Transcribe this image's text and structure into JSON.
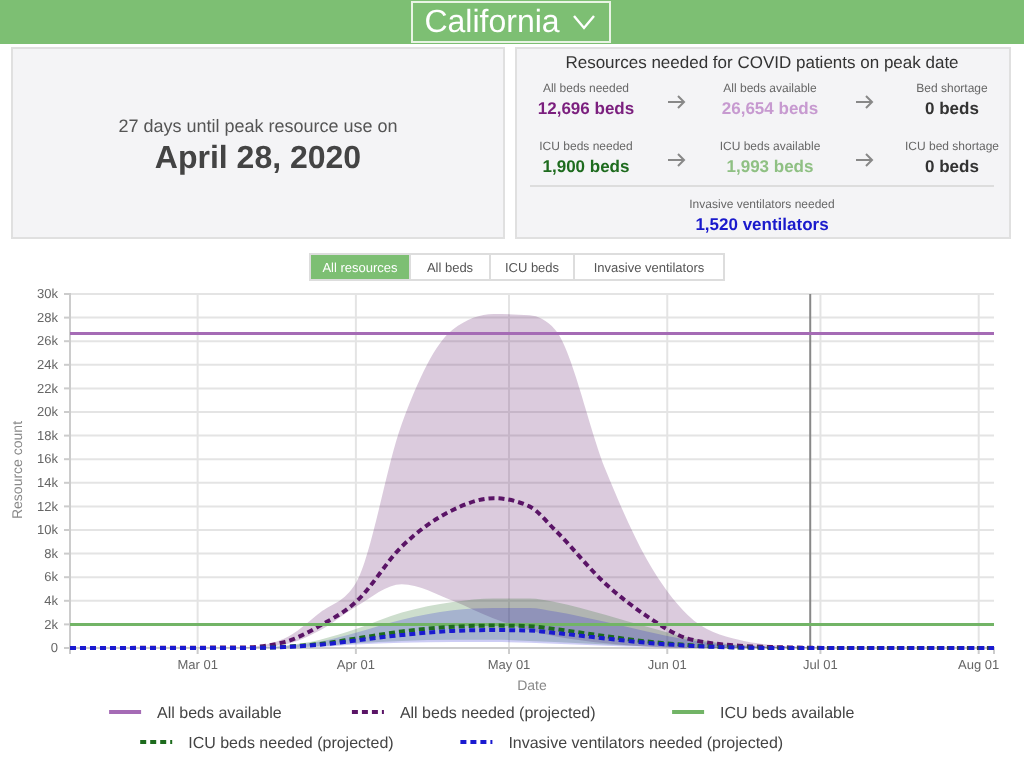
{
  "chart_data": {
    "type": "line",
    "title": "California",
    "xlabel": "Date",
    "ylabel": "Resource count",
    "annotations": [
      "27 days until peak resource use on",
      "April 28, 2020",
      "Resources needed for COVID patients on peak date",
      "All beds needed",
      "12,696 beds",
      "All beds available",
      "26,654 beds",
      "Bed shortage",
      "0 beds",
      "ICU beds needed",
      "1,900 beds",
      "ICU beds available",
      "1,993 beds",
      "ICU bed shortage",
      "0 beds",
      "Invasive ventilators needed",
      "1,520 ventilators",
      "All resources",
      "All beds",
      "ICU beds",
      "Invasive ventilators"
    ],
    "xlim": [
      "2020-02-05",
      "2020-08-04"
    ],
    "xticks": [
      {
        "value": "2020-03-01",
        "label": "Mar 01"
      },
      {
        "value": "2020-04-01",
        "label": "Apr 01"
      },
      {
        "value": "2020-05-01",
        "label": "May 01"
      },
      {
        "value": "2020-06-01",
        "label": "Jun 01"
      },
      {
        "value": "2020-07-01",
        "label": "Jul 01"
      },
      {
        "value": "2020-08-01",
        "label": "Aug 01"
      }
    ],
    "ylim": [
      0,
      30000
    ],
    "yticks": [
      0,
      {
        "value": 2000,
        "label": "2k"
      },
      {
        "value": 4000,
        "label": "4k"
      },
      {
        "value": 6000,
        "label": "6k"
      },
      {
        "value": 8000,
        "label": "8k"
      },
      {
        "value": 10000,
        "label": "10k"
      },
      {
        "value": 12000,
        "label": "12k"
      },
      {
        "value": 14000,
        "label": "14k"
      },
      {
        "value": 16000,
        "label": "16k"
      },
      {
        "value": 18000,
        "label": "18k"
      },
      {
        "value": 20000,
        "label": "20k"
      },
      {
        "value": 22000,
        "label": "22k"
      },
      {
        "value": 24000,
        "label": "24k"
      },
      {
        "value": 26000,
        "label": "26k"
      },
      {
        "value": 28000,
        "label": "28k"
      },
      {
        "value": 30000,
        "label": "30k"
      }
    ],
    "grid": true,
    "legend": "bottom",
    "ref_lines": [
      {
        "axis": "x",
        "value": "2020-06-29",
        "color": "#888888"
      }
    ],
    "series": [
      {
        "name": "All beds available",
        "color": "#a56bb5",
        "line_style": "solid",
        "x": [
          "2020-02-05",
          "2020-08-04"
        ],
        "values": [
          26654,
          26654
        ]
      },
      {
        "name": "All beds needed (projected)",
        "color": "#5a1466",
        "line_style": "dashed",
        "x": [
          "2020-02-05",
          "2020-03-10",
          "2020-03-18",
          "2020-03-25",
          "2020-04-01",
          "2020-04-10",
          "2020-04-20",
          "2020-04-28",
          "2020-05-05",
          "2020-05-10",
          "2020-05-20",
          "2020-05-28",
          "2020-06-05",
          "2020-06-15",
          "2020-06-25",
          "2020-07-05",
          "2020-08-04"
        ],
        "values": [
          0,
          50,
          500,
          1900,
          3900,
          8600,
          11700,
          12696,
          12000,
          10000,
          5400,
          2700,
          800,
          200,
          50,
          0,
          0
        ],
        "lower": [
          0,
          0,
          300,
          1500,
          3500,
          5400,
          4000,
          2500,
          1500,
          1000,
          400,
          100,
          0,
          0,
          0,
          0,
          0
        ],
        "upper": [
          0,
          50,
          800,
          3000,
          5500,
          19000,
          27000,
          28300,
          28200,
          27000,
          15000,
          7500,
          2800,
          700,
          150,
          0,
          0
        ]
      },
      {
        "name": "ICU beds available",
        "color": "#72b466",
        "line_style": "solid",
        "x": [
          "2020-02-05",
          "2020-08-04"
        ],
        "values": [
          1993,
          1993
        ]
      },
      {
        "name": "ICU beds needed (projected)",
        "color": "#1d6b1d",
        "line_style": "dashed",
        "x": [
          "2020-02-05",
          "2020-03-10",
          "2020-03-18",
          "2020-03-25",
          "2020-04-01",
          "2020-04-10",
          "2020-04-20",
          "2020-04-28",
          "2020-05-05",
          "2020-05-10",
          "2020-05-20",
          "2020-05-28",
          "2020-06-05",
          "2020-06-15",
          "2020-06-25",
          "2020-07-05",
          "2020-08-04"
        ],
        "values": [
          0,
          0,
          100,
          350,
          800,
          1400,
          1800,
          1900,
          1850,
          1600,
          1000,
          550,
          250,
          50,
          0,
          0,
          0
        ],
        "lower": [
          0,
          0,
          50,
          150,
          400,
          600,
          700,
          700,
          600,
          500,
          300,
          150,
          50,
          0,
          0,
          0,
          0
        ],
        "upper": [
          0,
          0,
          200,
          700,
          1600,
          3000,
          3900,
          4200,
          4200,
          3900,
          2800,
          1800,
          900,
          250,
          50,
          0,
          0
        ]
      },
      {
        "name": "Invasive ventilators needed (projected)",
        "color": "#1a1ad0",
        "line_style": "dashed",
        "x": [
          "2020-02-05",
          "2020-03-10",
          "2020-03-18",
          "2020-03-25",
          "2020-04-01",
          "2020-04-10",
          "2020-04-20",
          "2020-04-28",
          "2020-05-05",
          "2020-05-10",
          "2020-05-20",
          "2020-05-28",
          "2020-06-05",
          "2020-06-15",
          "2020-06-25",
          "2020-07-05",
          "2020-08-04"
        ],
        "values": [
          0,
          0,
          80,
          280,
          640,
          1100,
          1450,
          1520,
          1480,
          1280,
          800,
          440,
          200,
          40,
          0,
          0,
          0
        ],
        "lower": [
          0,
          0,
          40,
          100,
          300,
          450,
          500,
          500,
          450,
          350,
          200,
          100,
          30,
          0,
          0,
          0,
          0
        ],
        "upper": [
          0,
          0,
          150,
          550,
          1300,
          2400,
          3200,
          3400,
          3400,
          3100,
          2200,
          1400,
          700,
          200,
          40,
          0,
          0
        ]
      }
    ]
  }
}
